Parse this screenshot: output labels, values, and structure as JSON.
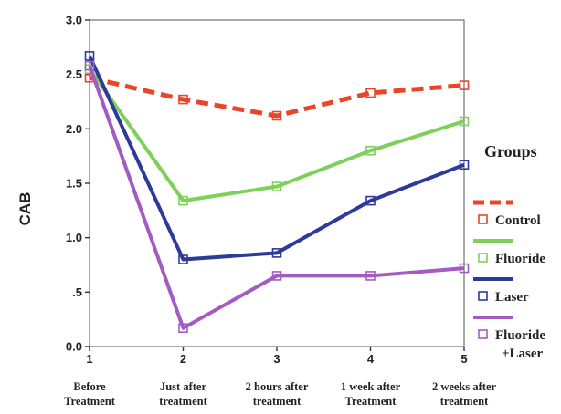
{
  "chart_data": {
    "type": "line",
    "ylabel": "CAB",
    "ylim": [
      0,
      3
    ],
    "y_ticks": [
      "0.0",
      ".5",
      "1.0",
      "1.5",
      "2.0",
      "2.5",
      "3.0"
    ],
    "y_tick_values": [
      0,
      0.5,
      1.0,
      1.5,
      2.0,
      2.5,
      3.0
    ],
    "x": [
      1,
      2,
      3,
      4,
      5
    ],
    "x_ticks": [
      "1",
      "2",
      "3",
      "4",
      "5"
    ],
    "categories": [
      [
        "Before",
        "Treatment"
      ],
      [
        "Just after",
        "treatment"
      ],
      [
        "2 hours after",
        "treatment"
      ],
      [
        "1 week after",
        "Treatment"
      ],
      [
        "2 weeks after",
        "treatment"
      ]
    ],
    "legend": {
      "title": "Groups",
      "placement": "right"
    },
    "series": [
      {
        "name": "Control",
        "color": "#e8452a",
        "dashed": true,
        "values": [
          2.47,
          2.27,
          2.12,
          2.33,
          2.4
        ]
      },
      {
        "name": "Fluoride",
        "color": "#7ed05a",
        "dashed": false,
        "values": [
          2.55,
          1.34,
          1.47,
          1.8,
          2.07
        ]
      },
      {
        "name": "Laser",
        "color": "#2e3a9a",
        "dashed": false,
        "values": [
          2.67,
          0.8,
          0.86,
          1.34,
          1.67
        ]
      },
      {
        "name": "Fluoride",
        "name2": "+Laser",
        "color": "#a35bc2",
        "dashed": false,
        "values": [
          2.58,
          0.17,
          0.65,
          0.65,
          0.72
        ]
      }
    ]
  }
}
